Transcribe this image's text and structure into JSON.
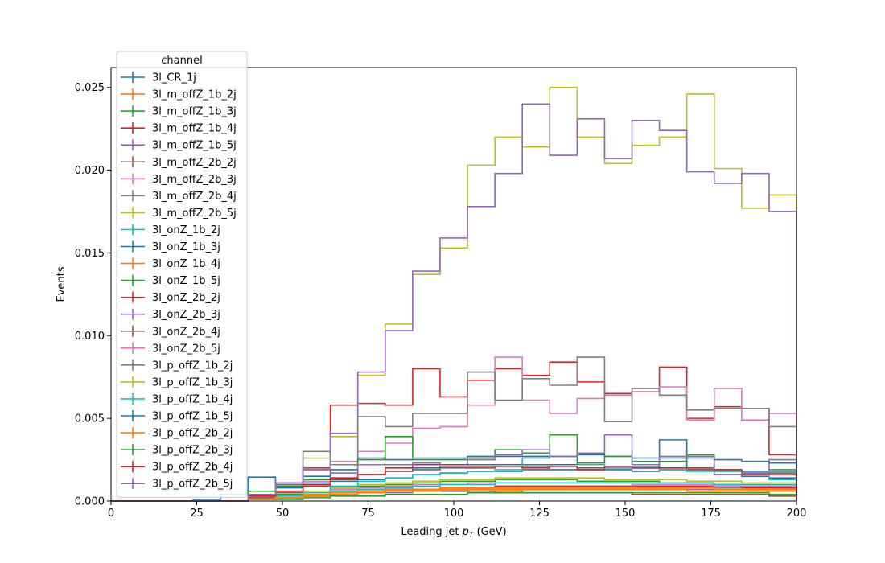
{
  "chart_data": {
    "type": "step-histogram",
    "title": "",
    "xlabel": "Leading jet  p_T (GeV)",
    "xlabel_parts": {
      "prefix": "Leading jet  ",
      "var": "p",
      "sub": "T",
      "suffix": " (GeV)"
    },
    "ylabel": "Events",
    "xlim": [
      0,
      200
    ],
    "ylim": [
      0,
      0.0262
    ],
    "xticks": [
      "0",
      "25",
      "50",
      "75",
      "100",
      "125",
      "150",
      "175",
      "200"
    ],
    "xtick_values": [
      0,
      25,
      50,
      75,
      100,
      125,
      150,
      175,
      200
    ],
    "yticks": [
      "0.000",
      "0.005",
      "0.010",
      "0.015",
      "0.020",
      "0.025"
    ],
    "ytick_values": [
      0,
      0.005,
      0.01,
      0.015,
      0.02,
      0.025
    ],
    "grid": false,
    "legend": {
      "title": "channel",
      "placement": "upper-left"
    },
    "bin_edges": [
      0,
      8,
      16,
      24,
      32,
      40,
      48,
      56,
      64,
      72,
      80,
      88,
      96,
      104,
      112,
      120,
      128,
      136,
      144,
      152,
      160,
      168,
      176,
      184,
      192,
      200
    ],
    "series": [
      {
        "name": "3l_CR_1j",
        "color": "#1f77b4",
        "values": [
          0,
          0,
          0,
          0.0001,
          0.0004,
          0.00145,
          0.0009,
          0.0011,
          0.0012,
          0.0013,
          0.0014,
          0.0016,
          0.0017,
          0.0018,
          0.0018,
          0.0019,
          0.0019,
          0.0019,
          0.0019,
          0.0018,
          0.0037,
          0.0019,
          0.0016,
          0.0015,
          0.0014
        ]
      },
      {
        "name": "3l_m_offZ_1b_2j",
        "color": "#ff7f0e",
        "values": [
          0,
          0,
          0,
          0,
          0,
          0.0001,
          0.0002,
          0.0004,
          0.0007,
          0.0008,
          0.0007,
          0.0007,
          0.0006,
          0.0006,
          0.0006,
          0.0005,
          0.0005,
          0.0005,
          0.0005,
          0.0004,
          0.0004,
          0.0004,
          0.0004,
          0.0004,
          0.0003
        ]
      },
      {
        "name": "3l_m_offZ_1b_3j",
        "color": "#2ca02c",
        "values": [
          0,
          0,
          0,
          0,
          0,
          0.0002,
          0.0004,
          0.0006,
          0.0008,
          0.0009,
          0.001,
          0.0011,
          0.0012,
          0.0012,
          0.0013,
          0.0013,
          0.0013,
          0.0012,
          0.0012,
          0.0012,
          0.0011,
          0.0011,
          0.001,
          0.001,
          0.0009
        ]
      },
      {
        "name": "3l_m_offZ_1b_4j",
        "color": "#d62728",
        "values": [
          0,
          0,
          0,
          0,
          0,
          0.0001,
          0.0002,
          0.0003,
          0.0005,
          0.0006,
          0.0007,
          0.0007,
          0.0008,
          0.0008,
          0.0009,
          0.0009,
          0.0009,
          0.0009,
          0.0009,
          0.0009,
          0.0009,
          0.0009,
          0.0008,
          0.0008,
          0.0008
        ]
      },
      {
        "name": "3l_m_offZ_1b_5j",
        "color": "#9467bd",
        "values": [
          0,
          0,
          0,
          0,
          0,
          0.0001,
          0.0002,
          0.0003,
          0.0004,
          0.0005,
          0.0005,
          0.0006,
          0.0006,
          0.0007,
          0.0007,
          0.0007,
          0.0007,
          0.0007,
          0.0007,
          0.0007,
          0.0007,
          0.0007,
          0.0006,
          0.0006,
          0.0006
        ]
      },
      {
        "name": "3l_m_offZ_2b_2j",
        "color": "#8c564b",
        "values": [
          0,
          0,
          0,
          0,
          0,
          0.0001,
          0.0002,
          0.0004,
          0.0006,
          0.0006,
          0.0006,
          0.0006,
          0.0006,
          0.0006,
          0.0005,
          0.0005,
          0.0005,
          0.0005,
          0.0005,
          0.0004,
          0.0004,
          0.0004,
          0.0004,
          0.0004,
          0.0003
        ]
      },
      {
        "name": "3l_m_offZ_2b_3j",
        "color": "#e377c2",
        "values": [
          0,
          0,
          0,
          0,
          0,
          0.0001,
          0.0003,
          0.0005,
          0.0007,
          0.0008,
          0.0009,
          0.001,
          0.001,
          0.0011,
          0.0011,
          0.0011,
          0.0011,
          0.0011,
          0.0011,
          0.001,
          0.001,
          0.001,
          0.0009,
          0.0009,
          0.0009
        ]
      },
      {
        "name": "3l_m_offZ_2b_4j",
        "color": "#7f7f7f",
        "values": [
          0,
          0,
          0,
          0,
          0,
          0.0001,
          0.0002,
          0.0003,
          0.0005,
          0.0006,
          0.0006,
          0.0007,
          0.0007,
          0.0008,
          0.0008,
          0.0008,
          0.0008,
          0.0008,
          0.0008,
          0.0008,
          0.0008,
          0.0008,
          0.0008,
          0.0007,
          0.0007
        ]
      },
      {
        "name": "3l_m_offZ_2b_5j",
        "color": "#bcbd22",
        "values": [
          0,
          0,
          0,
          0,
          0,
          0.0002,
          0.0008,
          0.0026,
          0.0039,
          0.0076,
          0.0107,
          0.0137,
          0.0153,
          0.0203,
          0.022,
          0.0214,
          0.025,
          0.022,
          0.0204,
          0.0215,
          0.022,
          0.0246,
          0.0201,
          0.0177,
          0.0185
        ]
      },
      {
        "name": "3l_onZ_1b_2j",
        "color": "#17becf",
        "values": [
          0,
          0,
          0,
          0,
          0,
          0.0001,
          0.0002,
          0.0004,
          0.0006,
          0.0007,
          0.0008,
          0.0009,
          0.001,
          0.001,
          0.0011,
          0.0011,
          0.0011,
          0.0011,
          0.0011,
          0.0011,
          0.0011,
          0.0011,
          0.001,
          0.001,
          0.001
        ]
      },
      {
        "name": "3l_onZ_1b_3j",
        "color": "#1f77b4",
        "values": [
          0,
          0,
          0,
          0,
          0,
          0.0002,
          0.0005,
          0.0009,
          0.0013,
          0.0016,
          0.0018,
          0.002,
          0.0021,
          0.0022,
          0.0022,
          0.0022,
          0.0022,
          0.0022,
          0.0021,
          0.0021,
          0.002,
          0.002,
          0.0019,
          0.0018,
          0.0018
        ]
      },
      {
        "name": "3l_onZ_1b_4j",
        "color": "#ff7f0e",
        "values": [
          0,
          0,
          0,
          0,
          0,
          0.0001,
          0.0002,
          0.0003,
          0.0004,
          0.0005,
          0.0006,
          0.0006,
          0.0007,
          0.0007,
          0.0007,
          0.0007,
          0.0007,
          0.0007,
          0.0007,
          0.0007,
          0.0007,
          0.0006,
          0.0006,
          0.0006,
          0.0006
        ]
      },
      {
        "name": "3l_onZ_1b_5j",
        "color": "#2ca02c",
        "values": [
          0,
          0,
          0,
          0,
          0,
          0.0001,
          0.0001,
          0.0002,
          0.0003,
          0.0003,
          0.0004,
          0.0004,
          0.0004,
          0.0005,
          0.0005,
          0.0005,
          0.0005,
          0.0005,
          0.0005,
          0.0005,
          0.0005,
          0.0005,
          0.0005,
          0.0005,
          0.0004
        ]
      },
      {
        "name": "3l_onZ_2b_2j",
        "color": "#d62728",
        "values": [
          0,
          0,
          0,
          0,
          0,
          0.0003,
          0.0009,
          0.002,
          0.0058,
          0.0059,
          0.0058,
          0.008,
          0.0063,
          0.0073,
          0.008,
          0.0076,
          0.0084,
          0.0072,
          0.0065,
          0.0066,
          0.0081,
          0.005,
          0.0057,
          0.0056,
          0.0028
        ]
      },
      {
        "name": "3l_onZ_2b_3j",
        "color": "#9467bd",
        "values": [
          0,
          0,
          0,
          0,
          0,
          0.0003,
          0.0011,
          0.0019,
          0.0041,
          0.0078,
          0.0103,
          0.0139,
          0.0159,
          0.0178,
          0.0198,
          0.024,
          0.0209,
          0.0231,
          0.0207,
          0.023,
          0.0224,
          0.0199,
          0.0192,
          0.0198,
          0.0175
        ]
      },
      {
        "name": "3l_onZ_2b_4j",
        "color": "#8c564b",
        "values": [
          0,
          0,
          0,
          0,
          0,
          0.0002,
          0.0005,
          0.0009,
          0.0013,
          0.0016,
          0.0018,
          0.0019,
          0.002,
          0.002,
          0.0021,
          0.0021,
          0.0021,
          0.002,
          0.002,
          0.002,
          0.0019,
          0.0019,
          0.0018,
          0.0017,
          0.0017
        ]
      },
      {
        "name": "3l_onZ_2b_5j",
        "color": "#e377c2",
        "values": [
          0,
          0,
          0,
          0,
          0,
          0.0001,
          0.0006,
          0.0012,
          0.0024,
          0.003,
          0.0035,
          0.0044,
          0.0045,
          0.0058,
          0.0087,
          0.0061,
          0.0053,
          0.0062,
          0.0064,
          0.0066,
          0.0069,
          0.0049,
          0.0068,
          0.0049,
          0.0053
        ]
      },
      {
        "name": "3l_p_offZ_1b_2j",
        "color": "#7f7f7f",
        "values": [
          0,
          0,
          0,
          0,
          0,
          0.0004,
          0.001,
          0.003,
          0.0022,
          0.0051,
          0.0045,
          0.0053,
          0.0053,
          0.0078,
          0.0061,
          0.0074,
          0.007,
          0.0087,
          0.0048,
          0.0068,
          0.0064,
          0.0055,
          0.0056,
          0.0056,
          0.0045
        ]
      },
      {
        "name": "3l_p_offZ_1b_3j",
        "color": "#bcbd22",
        "values": [
          0,
          0,
          0,
          0,
          0,
          0.0001,
          0.0003,
          0.0006,
          0.0008,
          0.001,
          0.0011,
          0.0012,
          0.0013,
          0.0013,
          0.0014,
          0.0014,
          0.0014,
          0.0014,
          0.0013,
          0.0013,
          0.0013,
          0.0012,
          0.0012,
          0.0011,
          0.0011
        ]
      },
      {
        "name": "3l_p_offZ_1b_4j",
        "color": "#17becf",
        "values": [
          0,
          0,
          0,
          0,
          0,
          0.0001,
          0.0003,
          0.0005,
          0.0009,
          0.0012,
          0.0014,
          0.0016,
          0.0017,
          0.0018,
          0.0019,
          0.0026,
          0.0027,
          0.0022,
          0.002,
          0.002,
          0.0019,
          0.0018,
          0.0018,
          0.0016,
          0.0013
        ]
      },
      {
        "name": "3l_p_offZ_1b_5j",
        "color": "#1f77b4",
        "values": [
          0,
          0,
          0,
          0,
          0,
          0.0003,
          0.0008,
          0.0015,
          0.0019,
          0.0026,
          0.0025,
          0.0026,
          0.0026,
          0.0027,
          0.0027,
          0.0027,
          0.0027,
          0.0028,
          0.0027,
          0.0026,
          0.0026,
          0.0026,
          0.0025,
          0.0024,
          0.0023
        ]
      },
      {
        "name": "3l_p_offZ_2b_2j",
        "color": "#ff7f0e",
        "values": [
          0,
          0,
          0,
          0,
          0,
          0.0001,
          0.0002,
          0.0004,
          0.0005,
          0.0006,
          0.0007,
          0.0007,
          0.0008,
          0.0008,
          0.0008,
          0.0008,
          0.0008,
          0.0008,
          0.0008,
          0.0008,
          0.0008,
          0.0008,
          0.0007,
          0.0007,
          0.0007
        ]
      },
      {
        "name": "3l_p_offZ_2b_3j",
        "color": "#2ca02c",
        "values": [
          0,
          0,
          0,
          0,
          0,
          0.0006,
          0.0009,
          0.0013,
          0.0014,
          0.0025,
          0.0039,
          0.0025,
          0.0025,
          0.0026,
          0.0031,
          0.0029,
          0.004,
          0.0023,
          0.0027,
          0.0024,
          0.0024,
          0.0028,
          0.0019,
          0.0016,
          0.0019
        ]
      },
      {
        "name": "3l_p_offZ_2b_4j",
        "color": "#d62728",
        "values": [
          0,
          0,
          0,
          0,
          0,
          0.0003,
          0.0006,
          0.001,
          0.0014,
          0.0016,
          0.002,
          0.0022,
          0.0022,
          0.0021,
          0.0021,
          0.002,
          0.0021,
          0.0019,
          0.0021,
          0.002,
          0.002,
          0.002,
          0.0019,
          0.0016,
          0.0016
        ]
      },
      {
        "name": "3l_p_offZ_2b_5j",
        "color": "#9467bd",
        "values": [
          0,
          0,
          0,
          0,
          0,
          0.0004,
          0.0011,
          0.0019,
          0.0017,
          0.0022,
          0.0022,
          0.0023,
          0.0021,
          0.0025,
          0.0028,
          0.0031,
          0.0027,
          0.0029,
          0.004,
          0.0022,
          0.0027,
          0.0027,
          0.0016,
          0.0017,
          0.0025
        ]
      }
    ]
  }
}
